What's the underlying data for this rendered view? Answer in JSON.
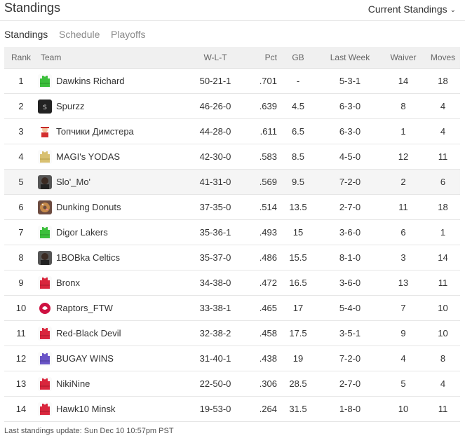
{
  "header": {
    "title": "Standings",
    "selector_label": "Current Standings"
  },
  "tabs": [
    {
      "label": "Standings",
      "active": true
    },
    {
      "label": "Schedule",
      "active": false
    },
    {
      "label": "Playoffs",
      "active": false
    }
  ],
  "table": {
    "columns": [
      "Rank",
      "Team",
      "W-L-T",
      "Pct",
      "GB",
      "Last Week",
      "Waiver",
      "Moves"
    ],
    "rows": [
      {
        "rank": "1",
        "team": "Dawkins Richard",
        "wlt": "50-21-1",
        "pct": ".701",
        "gb": "-",
        "last_week": "5-3-1",
        "waiver": "14",
        "moves": "18",
        "logo": "green-jersey-icon"
      },
      {
        "rank": "2",
        "team": "Spurzz",
        "wlt": "46-26-0",
        "pct": ".639",
        "gb": "4.5",
        "last_week": "6-3-0",
        "waiver": "8",
        "moves": "4",
        "logo": "spurs-logo-icon"
      },
      {
        "rank": "3",
        "team": "Топчики Димстера",
        "wlt": "44-28-0",
        "pct": ".611",
        "gb": "6.5",
        "last_week": "6-3-0",
        "waiver": "1",
        "moves": "4",
        "logo": "mascot-icon"
      },
      {
        "rank": "4",
        "team": "MAGI's YODAS",
        "wlt": "42-30-0",
        "pct": ".583",
        "gb": "8.5",
        "last_week": "4-5-0",
        "waiver": "12",
        "moves": "11",
        "logo": "gold-jersey-icon"
      },
      {
        "rank": "5",
        "team": "Slo'_Mo'",
        "wlt": "41-31-0",
        "pct": ".569",
        "gb": "9.5",
        "last_week": "7-2-0",
        "waiver": "2",
        "moves": "6",
        "logo": "player-photo-icon",
        "highlighted": true
      },
      {
        "rank": "6",
        "team": "Dunking Donuts",
        "wlt": "37-35-0",
        "pct": ".514",
        "gb": "13.5",
        "last_week": "2-7-0",
        "waiver": "11",
        "moves": "18",
        "logo": "donut-icon"
      },
      {
        "rank": "7",
        "team": "Digor Lakers",
        "wlt": "35-36-1",
        "pct": ".493",
        "gb": "15",
        "last_week": "3-6-0",
        "waiver": "6",
        "moves": "1",
        "logo": "green-jersey-icon"
      },
      {
        "rank": "8",
        "team": "1BOBka Celtics",
        "wlt": "35-37-0",
        "pct": ".486",
        "gb": "15.5",
        "last_week": "8-1-0",
        "waiver": "3",
        "moves": "14",
        "logo": "player-photo-icon"
      },
      {
        "rank": "9",
        "team": "Bronx",
        "wlt": "34-38-0",
        "pct": ".472",
        "gb": "16.5",
        "last_week": "3-6-0",
        "waiver": "13",
        "moves": "11",
        "logo": "red-jersey-icon"
      },
      {
        "rank": "10",
        "team": "Raptors_FTW",
        "wlt": "33-38-1",
        "pct": ".465",
        "gb": "17",
        "last_week": "5-4-0",
        "waiver": "7",
        "moves": "10",
        "logo": "raptors-logo-icon"
      },
      {
        "rank": "11",
        "team": "Red-Black Devil",
        "wlt": "32-38-2",
        "pct": ".458",
        "gb": "17.5",
        "last_week": "3-5-1",
        "waiver": "9",
        "moves": "10",
        "logo": "red-jersey-icon"
      },
      {
        "rank": "12",
        "team": "BUGAY WINS",
        "wlt": "31-40-1",
        "pct": ".438",
        "gb": "19",
        "last_week": "7-2-0",
        "waiver": "4",
        "moves": "8",
        "logo": "purple-jersey-icon"
      },
      {
        "rank": "13",
        "team": "NikiNine",
        "wlt": "22-50-0",
        "pct": ".306",
        "gb": "28.5",
        "last_week": "2-7-0",
        "waiver": "5",
        "moves": "4",
        "logo": "red-jersey-icon"
      },
      {
        "rank": "14",
        "team": "Hawk10 Minsk",
        "wlt": "19-53-0",
        "pct": ".264",
        "gb": "31.5",
        "last_week": "1-8-0",
        "waiver": "10",
        "moves": "11",
        "logo": "red-jersey-icon"
      }
    ]
  },
  "footer": {
    "text": "Last standings update: Sun Dec 10 10:57pm PST"
  },
  "colors": {
    "header_bg": "#f0f0f0",
    "row_border": "#e6e6e6",
    "highlight_row": "#f5f5f5",
    "inactive_tab": "#8a8a8a"
  }
}
